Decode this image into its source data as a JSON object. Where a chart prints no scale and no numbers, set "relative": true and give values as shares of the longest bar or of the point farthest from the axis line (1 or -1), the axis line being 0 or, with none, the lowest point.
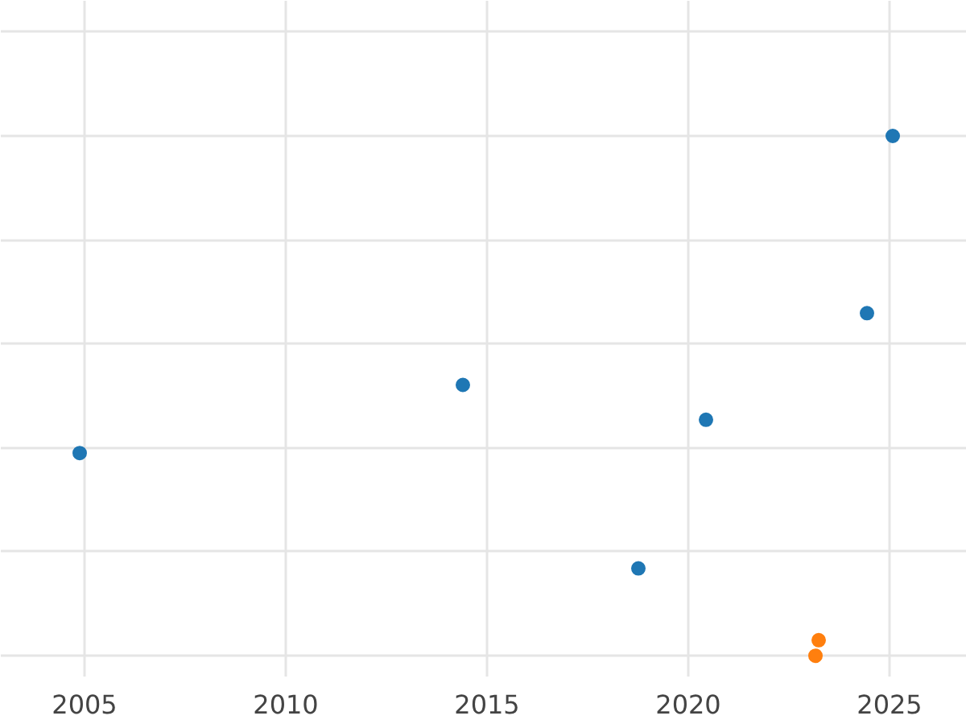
{
  "chart_data": {
    "type": "scatter",
    "relative": true,
    "grid": true,
    "marker": "circle",
    "xlim": [
      2002.92,
      2026.92
    ],
    "xticks": [
      2005,
      2010,
      2015,
      2020,
      2025
    ],
    "series": [
      {
        "color": "#1f77b4",
        "x": [
          2004.88,
          2014.4,
          2018.76,
          2020.44,
          2024.44,
          2025.08
        ],
        "values": [
          0.39,
          0.521,
          0.168,
          0.454,
          0.659,
          1
        ]
      },
      {
        "color": "#ff7f0e",
        "x": [
          2023.24,
          2023.16
        ],
        "values": [
          0.03,
          0
        ]
      }
    ]
  }
}
